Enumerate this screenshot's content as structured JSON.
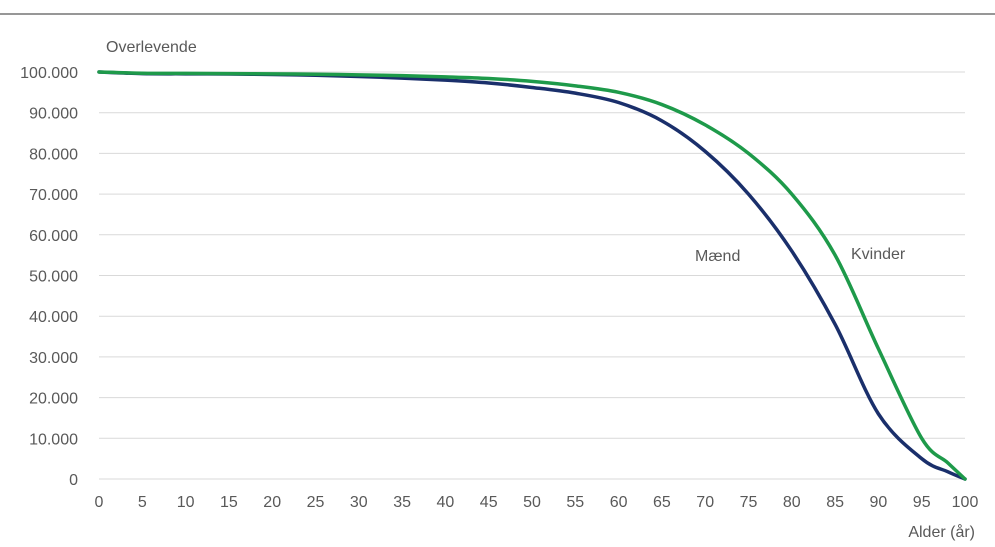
{
  "chart_data": {
    "type": "line",
    "y_axis_title": "Overlevende",
    "x_axis_title": "Alder (år)",
    "xlim": [
      0,
      100
    ],
    "ylim": [
      0,
      100000
    ],
    "grid": true,
    "x_ticks": [
      "0",
      "5",
      "10",
      "15",
      "20",
      "25",
      "30",
      "35",
      "40",
      "45",
      "50",
      "55",
      "60",
      "65",
      "70",
      "75",
      "80",
      "85",
      "90",
      "95",
      "100"
    ],
    "y_ticks": [
      {
        "value": 0,
        "label": "0"
      },
      {
        "value": 10000,
        "label": "10.000"
      },
      {
        "value": 20000,
        "label": "20.000"
      },
      {
        "value": 30000,
        "label": "30.000"
      },
      {
        "value": 40000,
        "label": "40.000"
      },
      {
        "value": 50000,
        "label": "50.000"
      },
      {
        "value": 60000,
        "label": "60.000"
      },
      {
        "value": 70000,
        "label": "70.000"
      },
      {
        "value": 80000,
        "label": "80.000"
      },
      {
        "value": 90000,
        "label": "90.000"
      },
      {
        "value": 100000,
        "label": "100.000"
      }
    ],
    "series": [
      {
        "name": "Mænd",
        "color": "#1a2f6b",
        "x": [
          0,
          5,
          10,
          15,
          20,
          25,
          30,
          35,
          40,
          45,
          50,
          55,
          60,
          65,
          70,
          75,
          80,
          85,
          90,
          95,
          98,
          100
        ],
        "y": [
          100000,
          99600,
          99550,
          99500,
          99400,
          99200,
          98900,
          98500,
          98000,
          97300,
          96200,
          94800,
          92500,
          88000,
          80500,
          70000,
          56000,
          38000,
          16000,
          5000,
          1800,
          0
        ]
      },
      {
        "name": "Kvinder",
        "color": "#1e9a4a",
        "x": [
          0,
          5,
          10,
          15,
          20,
          25,
          30,
          35,
          40,
          45,
          50,
          55,
          60,
          65,
          70,
          75,
          80,
          85,
          90,
          95,
          98,
          100
        ],
        "y": [
          100000,
          99700,
          99650,
          99600,
          99550,
          99450,
          99300,
          99100,
          98800,
          98400,
          97700,
          96600,
          95000,
          92000,
          87000,
          80000,
          70000,
          55000,
          32000,
          10000,
          4000,
          0
        ]
      }
    ]
  }
}
